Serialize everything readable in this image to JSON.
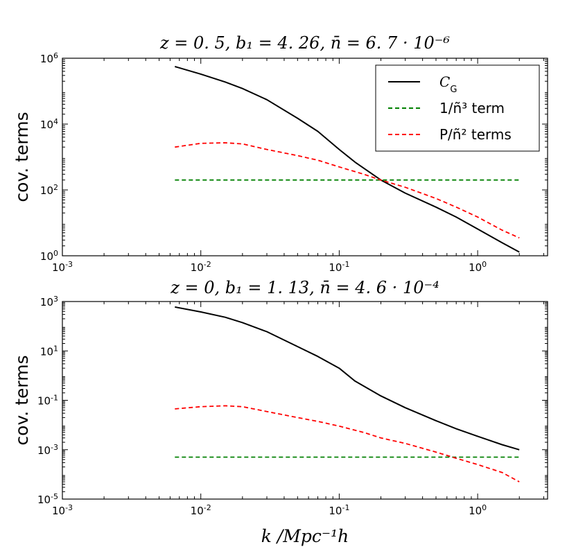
{
  "colors": {
    "cg": "#000000",
    "shot": "#008000",
    "cross": "#ff0000",
    "frame": "#000000"
  },
  "x_axis_label": "k   /Mpc⁻¹h",
  "chart_data": [
    {
      "type": "line",
      "title": "z = 0. 5, b₁ = 4. 26, n̄ =  6. 7 · 10⁻⁶",
      "ylabel": "cov. terms",
      "xlabel": "",
      "xscale": "log",
      "yscale": "log",
      "xlim": [
        0.001,
        3.2
      ],
      "ylim": [
        1,
        1000000
      ],
      "x_ticks": [
        {
          "value": 0.001,
          "base": "10",
          "exp": "-3"
        },
        {
          "value": 0.01,
          "base": "10",
          "exp": "-2"
        },
        {
          "value": 0.1,
          "base": "10",
          "exp": "-1"
        },
        {
          "value": 1,
          "base": "10",
          "exp": "0"
        }
      ],
      "y_ticks": [
        {
          "value": 1,
          "base": "10",
          "exp": "0"
        },
        {
          "value": 100,
          "base": "10",
          "exp": "2"
        },
        {
          "value": 10000,
          "base": "10",
          "exp": "4"
        },
        {
          "value": 1000000,
          "base": "10",
          "exp": "6"
        }
      ],
      "legend": {
        "position": "top-right",
        "entries": [
          {
            "series": "C_G",
            "label": "C",
            "sub": "G"
          },
          {
            "series": "1/n^3",
            "label": "1/ñ³ term"
          },
          {
            "series": "P/n^2",
            "label": "P/ñ² terms"
          }
        ]
      },
      "series": [
        {
          "name": "C_G",
          "style": "solid",
          "x": [
            0.0065,
            0.01,
            0.015,
            0.02,
            0.03,
            0.05,
            0.07,
            0.1,
            0.13,
            0.2,
            0.3,
            0.5,
            0.7,
            1.0,
            1.5,
            2.0
          ],
          "y": [
            560000,
            330000,
            190000,
            120000,
            55000,
            15000,
            6000,
            1700,
            700,
            200,
            80,
            30,
            15,
            6.5,
            2.5,
            1.3
          ]
        },
        {
          "name": "1/n^3",
          "style": "dashed",
          "x": [
            0.0065,
            2.0
          ],
          "y": [
            200,
            200
          ]
        },
        {
          "name": "P/n^2",
          "style": "dashed",
          "x": [
            0.0065,
            0.01,
            0.015,
            0.02,
            0.03,
            0.05,
            0.07,
            0.1,
            0.15,
            0.2,
            0.3,
            0.5,
            0.7,
            1.0,
            1.5,
            2.0
          ],
          "y": [
            2000,
            2600,
            2700,
            2500,
            1700,
            1100,
            800,
            500,
            300,
            200,
            120,
            55,
            30,
            15,
            6,
            3.5
          ]
        }
      ]
    },
    {
      "type": "line",
      "title": "z = 0, b₁ = 1. 13, n̄ =  4. 6 · 10⁻⁴",
      "ylabel": "cov. terms",
      "xlabel": "k /Mpc⁻¹h",
      "xscale": "log",
      "yscale": "log",
      "xlim": [
        0.001,
        3.2
      ],
      "ylim": [
        1e-05,
        1000
      ],
      "x_ticks": [
        {
          "value": 0.001,
          "base": "10",
          "exp": "-3"
        },
        {
          "value": 0.01,
          "base": "10",
          "exp": "-2"
        },
        {
          "value": 0.1,
          "base": "10",
          "exp": "-1"
        },
        {
          "value": 1,
          "base": "10",
          "exp": "0"
        }
      ],
      "y_ticks": [
        {
          "value": 1e-05,
          "base": "10",
          "exp": "-5"
        },
        {
          "value": 0.001,
          "base": "10",
          "exp": "-3"
        },
        {
          "value": 0.1,
          "base": "10",
          "exp": "-1"
        },
        {
          "value": 10,
          "base": "10",
          "exp": "1"
        },
        {
          "value": 1000,
          "base": "10",
          "exp": "3"
        }
      ],
      "series": [
        {
          "name": "C_G",
          "style": "solid",
          "x": [
            0.0065,
            0.01,
            0.015,
            0.02,
            0.03,
            0.05,
            0.07,
            0.1,
            0.13,
            0.2,
            0.3,
            0.5,
            0.7,
            1.0,
            1.5,
            2.0
          ],
          "y": [
            600,
            380,
            230,
            140,
            60,
            15,
            6,
            2,
            0.6,
            0.15,
            0.05,
            0.015,
            0.007,
            0.0035,
            0.0016,
            0.001
          ]
        },
        {
          "name": "1/n^3",
          "style": "dashed",
          "x": [
            0.0065,
            2.0
          ],
          "y": [
            0.0005,
            0.0005
          ]
        },
        {
          "name": "P/n^2",
          "style": "dashed",
          "x": [
            0.0065,
            0.01,
            0.015,
            0.02,
            0.03,
            0.05,
            0.07,
            0.1,
            0.15,
            0.2,
            0.3,
            0.5,
            0.7,
            1.0,
            1.5,
            2.0
          ],
          "y": [
            0.045,
            0.055,
            0.06,
            0.055,
            0.035,
            0.02,
            0.014,
            0.009,
            0.005,
            0.003,
            0.0018,
            0.0008,
            0.00045,
            0.00025,
            0.00012,
            5e-05
          ]
        }
      ]
    }
  ]
}
